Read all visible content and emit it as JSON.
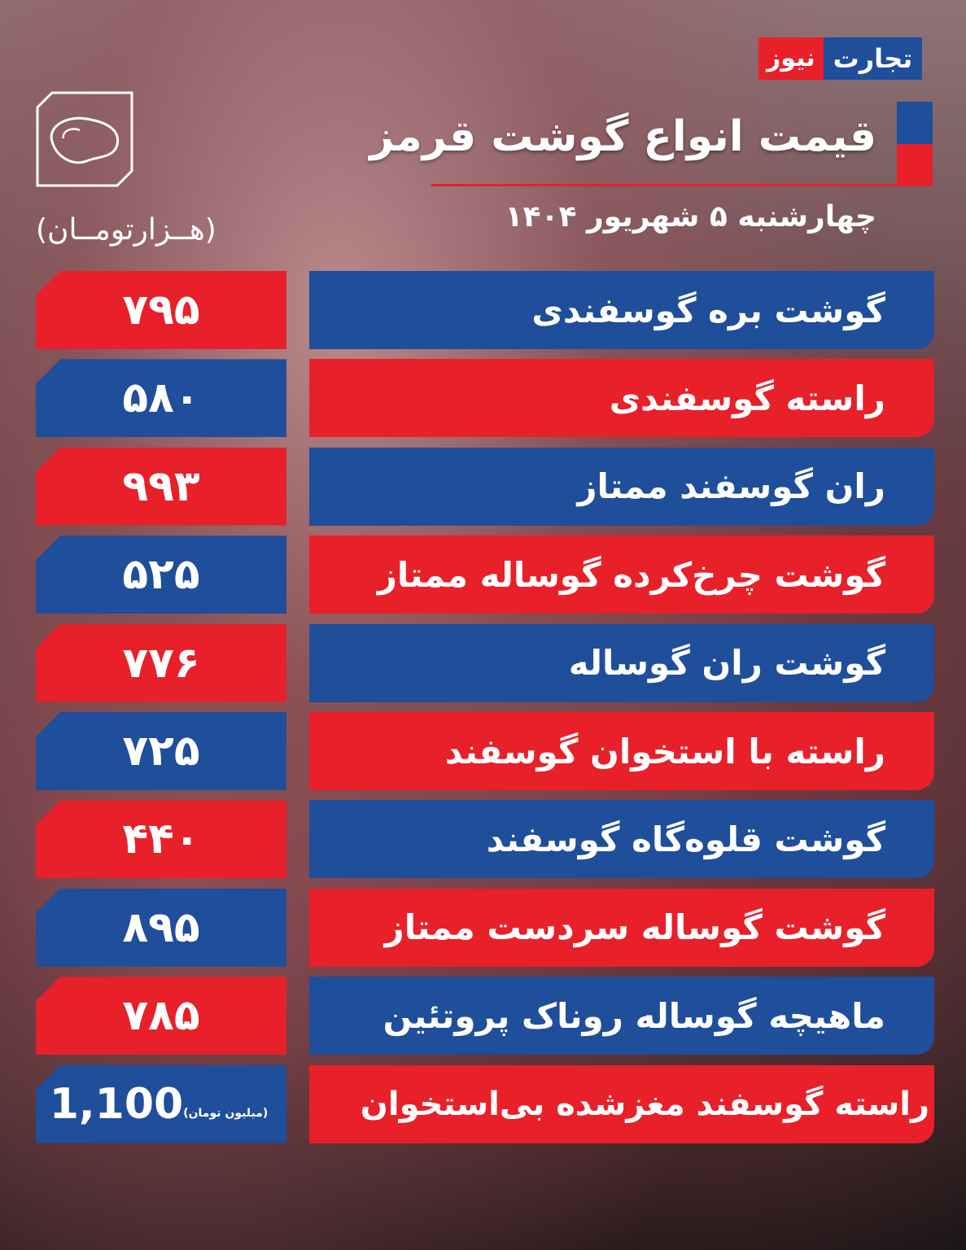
{
  "logo": {
    "part1": "تجارت",
    "part2": "نیوز"
  },
  "header": {
    "title": "قیمت انواع گوشت قرمز",
    "date": "چهارشنبه ۵ شهریور ۱۴۰۴",
    "unit": "(هــزارتومــان)"
  },
  "icons": {
    "meat": "steak-icon"
  },
  "colors": {
    "blue": "#1f4e9a",
    "red": "#e8202a"
  },
  "rows": [
    {
      "name": "گوشت بره گوسفندی",
      "price": "۷۹۵"
    },
    {
      "name": "راسته گوسفندی",
      "price": "۵۸۰"
    },
    {
      "name": "ران گوسفند ممتاز",
      "price": "۹۹۳"
    },
    {
      "name": "گوشت چرخ‌کرده گوساله ممتاز",
      "price": "۵۲۵"
    },
    {
      "name": "گوشت ران گوساله",
      "price": "۷۷۶"
    },
    {
      "name": "راسته با استخوان گوسفند",
      "price": "۷۲۵"
    },
    {
      "name": "گوشت قلوه‌گاه گوسفند",
      "price": "۴۴۰"
    },
    {
      "name": "گوشت گوساله سردست ممتاز",
      "price": "۸۹۵"
    },
    {
      "name": "ماهیچه گوساله روناک پروتئین",
      "price": "۷۸۵"
    },
    {
      "name": "راسته گوسفند مغزشده بی‌استخوان",
      "price": "1,100",
      "price_unit": "(میلیون تومان)"
    }
  ]
}
